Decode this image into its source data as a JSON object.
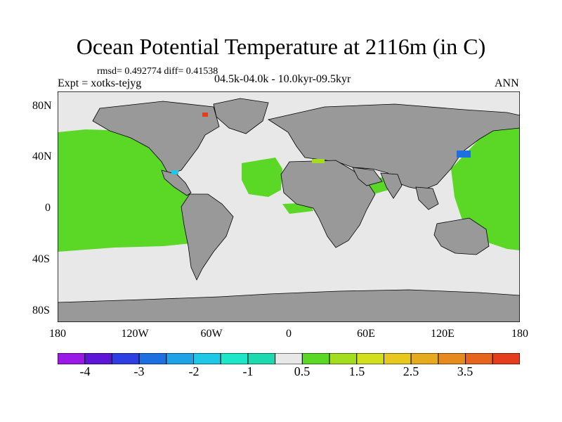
{
  "title": "Ocean Potential Temperature at 2116m (in C)",
  "stats": "rmsd= 0.492774 diff= 0.41538",
  "experiment": "Expt = xotks-tejyg",
  "period": "04.5k-04.0k - 10.0kyr-09.5kyr",
  "season": "ANN",
  "lat_labels": [
    "80N",
    "40N",
    "0",
    "40S",
    "80S"
  ],
  "lon_labels": [
    "180",
    "120W",
    "60W",
    "0",
    "60E",
    "120E",
    "180"
  ],
  "colorbar": {
    "labels": [
      "-4",
      "-3",
      "-2",
      "-1",
      "0.5",
      "1.5",
      "2.5",
      "3.5"
    ],
    "colors": [
      "#9b19e6",
      "#5d16d6",
      "#2e3ee2",
      "#1e6fe0",
      "#1ea3e6",
      "#1ec8e6",
      "#1ee6c8",
      "#1ed8b0",
      "#e8e8e8",
      "#5ad825",
      "#a3de1e",
      "#d2de1e",
      "#e6c81e",
      "#e6aa1e",
      "#e68a1e",
      "#e6641e",
      "#e63c1e"
    ]
  },
  "colors": {
    "land": "#999999",
    "ocean_neutral": "#e8e8e8",
    "warm_anomaly": "#5ad825",
    "cool_anomaly": "#1e6fe0",
    "hot_spot": "#e63c1e",
    "cyan_spot": "#1ec8e6"
  }
}
